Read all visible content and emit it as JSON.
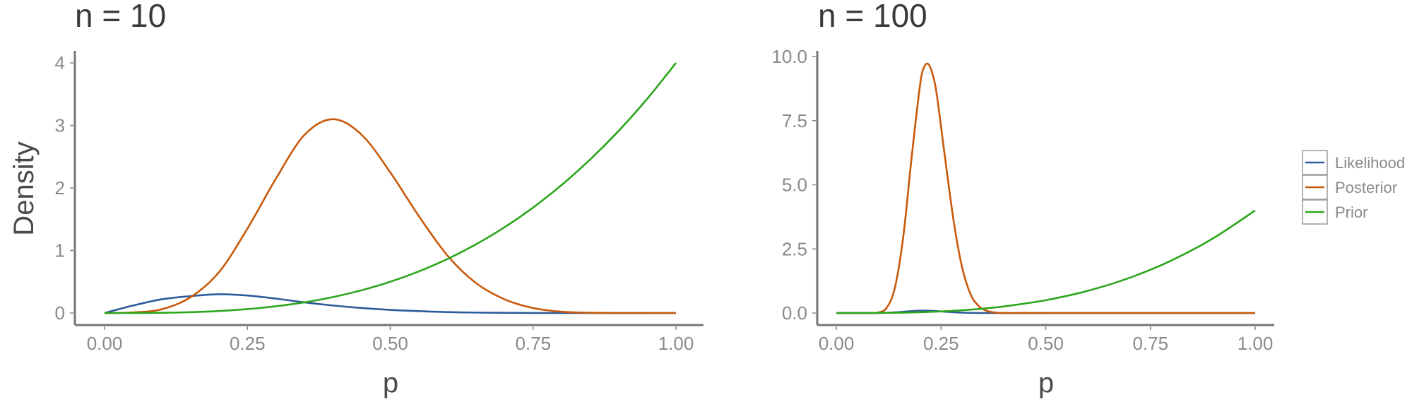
{
  "colors": {
    "Likelihood": "#2c5b9a",
    "Posterior": "#c8590a",
    "Prior": "#2ca61c"
  },
  "legend": {
    "items": [
      "Likelihood",
      "Posterior",
      "Prior"
    ],
    "placement": "right"
  },
  "chart_data": [
    {
      "type": "line",
      "title": "n = 10",
      "xlabel": "p",
      "ylabel": "Density",
      "xlim": [
        0,
        1
      ],
      "ylim": [
        0,
        4
      ],
      "xticks": [
        0,
        0.25,
        0.5,
        0.75,
        1.0
      ],
      "xtick_labels": [
        "0.00",
        "0.25",
        "0.50",
        "0.75",
        "1.00"
      ],
      "yticks": [
        0,
        1,
        2,
        3,
        4
      ],
      "ytick_labels": [
        "0",
        "1",
        "2",
        "3",
        "4"
      ],
      "grid": false,
      "x": [
        0,
        0.05,
        0.1,
        0.15,
        0.2,
        0.25,
        0.3,
        0.35,
        0.4,
        0.45,
        0.5,
        0.55,
        0.6,
        0.65,
        0.7,
        0.75,
        0.8,
        0.85,
        0.9,
        0.95,
        1.0
      ],
      "series": [
        {
          "name": "Likelihood",
          "values": [
            0,
            0.12,
            0.22,
            0.27,
            0.3,
            0.28,
            0.23,
            0.17,
            0.12,
            0.08,
            0.05,
            0.03,
            0.015,
            0.007,
            0.003,
            0.001,
            0,
            0,
            0,
            0,
            0
          ]
        },
        {
          "name": "Posterior",
          "values": [
            0,
            0.01,
            0.06,
            0.25,
            0.65,
            1.35,
            2.15,
            2.85,
            3.1,
            2.85,
            2.25,
            1.55,
            0.92,
            0.48,
            0.22,
            0.08,
            0.02,
            0.005,
            0,
            0,
            0
          ]
        },
        {
          "name": "Prior",
          "values": [
            0,
            0.0005,
            0.004,
            0.0135,
            0.032,
            0.0625,
            0.108,
            0.1715,
            0.256,
            0.3645,
            0.5,
            0.6655,
            0.864,
            1.0985,
            1.372,
            1.6875,
            2.048,
            2.4565,
            2.916,
            3.4295,
            4.0
          ]
        }
      ]
    },
    {
      "type": "line",
      "title": "n = 100",
      "xlabel": "p",
      "ylabel": "",
      "xlim": [
        0,
        1
      ],
      "ylim": [
        0,
        10
      ],
      "xticks": [
        0,
        0.25,
        0.5,
        0.75,
        1.0
      ],
      "xtick_labels": [
        "0.00",
        "0.25",
        "0.50",
        "0.75",
        "1.00"
      ],
      "yticks": [
        0,
        2.5,
        5,
        7.5,
        10
      ],
      "ytick_labels": [
        "0.0",
        "2.5",
        "5.0",
        "7.5",
        "10.0"
      ],
      "grid": false,
      "x": [
        0,
        0.05,
        0.08,
        0.1,
        0.12,
        0.14,
        0.16,
        0.18,
        0.2,
        0.21,
        0.22,
        0.23,
        0.24,
        0.26,
        0.28,
        0.3,
        0.32,
        0.34,
        0.36,
        0.38,
        0.4,
        0.5,
        0.6,
        0.7,
        0.8,
        0.9,
        1.0
      ],
      "series": [
        {
          "name": "Likelihood",
          "values": [
            0,
            0,
            0,
            0.002,
            0.008,
            0.025,
            0.05,
            0.075,
            0.09,
            0.092,
            0.09,
            0.085,
            0.075,
            0.05,
            0.03,
            0.015,
            0.006,
            0.002,
            0,
            0,
            0,
            0,
            0,
            0,
            0,
            0,
            0
          ]
        },
        {
          "name": "Posterior",
          "values": [
            0,
            0,
            0,
            0.02,
            0.2,
            1.0,
            3.0,
            6.1,
            8.9,
            9.6,
            9.7,
            9.3,
            8.5,
            6.0,
            3.6,
            1.8,
            0.75,
            0.27,
            0.08,
            0.02,
            0,
            0,
            0,
            0,
            0,
            0,
            0
          ]
        },
        {
          "name": "Prior",
          "values": [
            0,
            0.0005,
            0.002,
            0.004,
            0.007,
            0.011,
            0.016,
            0.023,
            0.032,
            0.037,
            0.043,
            0.049,
            0.055,
            0.07,
            0.088,
            0.108,
            0.131,
            0.157,
            0.187,
            0.219,
            0.256,
            0.5,
            0.864,
            1.372,
            2.048,
            2.916,
            4.0
          ]
        }
      ]
    }
  ]
}
